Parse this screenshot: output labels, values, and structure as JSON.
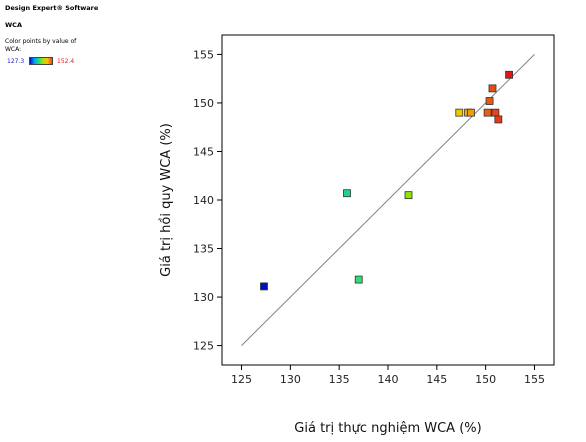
{
  "sidebar": {
    "software": "Design Expert® Software",
    "response": "WCA",
    "color_note": "Color points by value of\nWCA:",
    "scale_low": "127.3",
    "scale_high": "152.4"
  },
  "chart_data": {
    "type": "scatter",
    "xlabel": "Giá trị thực nghiệm WCA (%)",
    "ylabel": "Giá trị hồi quy WCA (%)",
    "xlim": [
      123,
      157
    ],
    "ylim": [
      123,
      157
    ],
    "xticks": [
      "125",
      "130",
      "135",
      "140",
      "145",
      "150",
      "155"
    ],
    "yticks": [
      "125",
      "130",
      "135",
      "140",
      "145",
      "150",
      "155"
    ],
    "reference_line": [
      [
        125,
        125
      ],
      [
        155,
        155
      ]
    ],
    "color_scale": {
      "min": 127.3,
      "max": 152.4
    },
    "points": [
      {
        "x": 127.3,
        "y": 131.1
      },
      {
        "x": 135.8,
        "y": 140.7
      },
      {
        "x": 137.0,
        "y": 131.8
      },
      {
        "x": 142.1,
        "y": 140.5
      },
      {
        "x": 147.3,
        "y": 149.0
      },
      {
        "x": 148.2,
        "y": 149.0
      },
      {
        "x": 148.5,
        "y": 149.0
      },
      {
        "x": 150.2,
        "y": 149.0
      },
      {
        "x": 150.4,
        "y": 150.2
      },
      {
        "x": 150.7,
        "y": 151.5
      },
      {
        "x": 151.0,
        "y": 149.0
      },
      {
        "x": 151.3,
        "y": 148.3
      },
      {
        "x": 152.4,
        "y": 152.9
      }
    ],
    "grid": false
  }
}
